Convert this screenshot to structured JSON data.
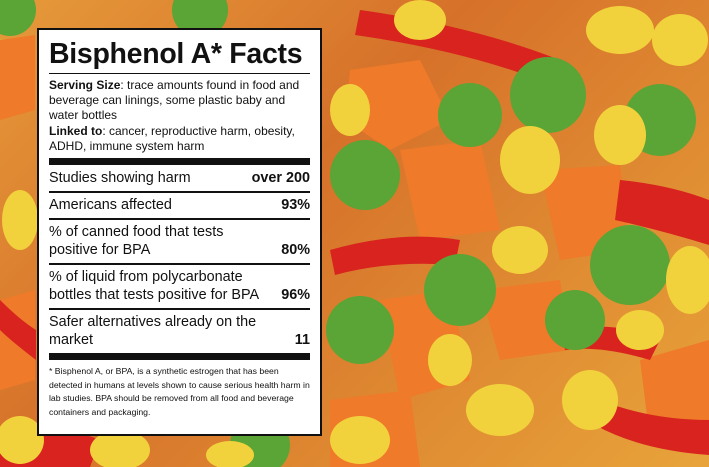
{
  "background": {
    "description_colors": {
      "corn": "#f2d23c",
      "pea": "#5aa535",
      "carrot": "#ee7a2a",
      "pepper": "#d8231e"
    }
  },
  "facts": {
    "title": "Bisphenol A* Facts",
    "serving_size_label": "Serving Size",
    "serving_size_text": ": trace amounts found in food and beverage can linings, some plastic baby and water bottles",
    "linked_to_label": "Linked to",
    "linked_to_text": ": cancer, reproductive harm, obesity, ADHD, immune system harm",
    "rows": [
      {
        "label": "Studies showing harm",
        "value": "over 200"
      },
      {
        "label": "Americans affected",
        "value": "93%"
      },
      {
        "label": "% of canned food that tests positive for BPA",
        "value": "80%"
      },
      {
        "label": "% of liquid from polycarbonate bottles that tests positive for BPA",
        "value": "96%"
      },
      {
        "label": "Safer alternatives already on the market",
        "value": "11"
      }
    ],
    "footnote": "* Bisphenol A, or BPA, is a synthetic estrogen that has been detected in humans at levels shown to cause serious health harm in lab studies. BPA should be removed from all food and beverage containers and packaging."
  }
}
